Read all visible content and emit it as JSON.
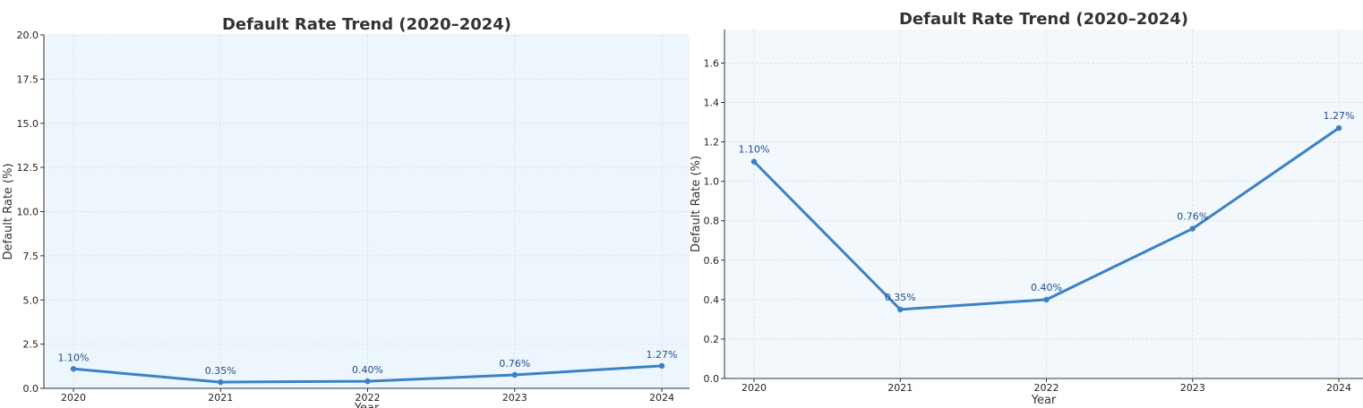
{
  "chart_data": [
    {
      "type": "line",
      "title": "Default Rate Trend (2020–2024)",
      "xlabel": "Year",
      "ylabel": "Default Rate (%)",
      "categories": [
        "2020",
        "2021",
        "2022",
        "2023",
        "2024"
      ],
      "series": [
        {
          "name": "Default Rate",
          "values": [
            1.1,
            0.35,
            0.4,
            0.76,
            1.27
          ]
        }
      ],
      "data_labels": [
        "1.10%",
        "0.35%",
        "0.40%",
        "0.76%",
        "1.27%"
      ],
      "ylim": [
        0,
        20
      ],
      "yticks": [
        "0.0",
        "2.5",
        "5.0",
        "7.5",
        "10.0",
        "12.5",
        "15.0",
        "17.5",
        "20.0"
      ],
      "grid": true,
      "colors": {
        "line": "#3a82c6",
        "plot_bg": "#eef6fd",
        "grid": "#d5dde6",
        "label": "#1f4e8c"
      }
    },
    {
      "type": "line",
      "title": "Default Rate Trend (2020–2024)",
      "xlabel": "Year",
      "ylabel": "Default Rate (%)",
      "categories": [
        "2020",
        "2021",
        "2022",
        "2023",
        "2024"
      ],
      "series": [
        {
          "name": "Default Rate",
          "values": [
            1.1,
            0.35,
            0.4,
            0.76,
            1.27
          ]
        }
      ],
      "data_labels": [
        "1.10%",
        "0.35%",
        "0.40%",
        "0.76%",
        "1.27%"
      ],
      "ylim": [
        0,
        1.77
      ],
      "yticks": [
        "0.0",
        "0.2",
        "0.4",
        "0.6",
        "0.8",
        "1.0",
        "1.2",
        "1.4",
        "1.6"
      ],
      "grid": true,
      "colors": {
        "line": "#3a82c6",
        "plot_bg": "#f3f8fc",
        "grid": "#d5dde6",
        "label": "#1f4e8c"
      }
    }
  ]
}
